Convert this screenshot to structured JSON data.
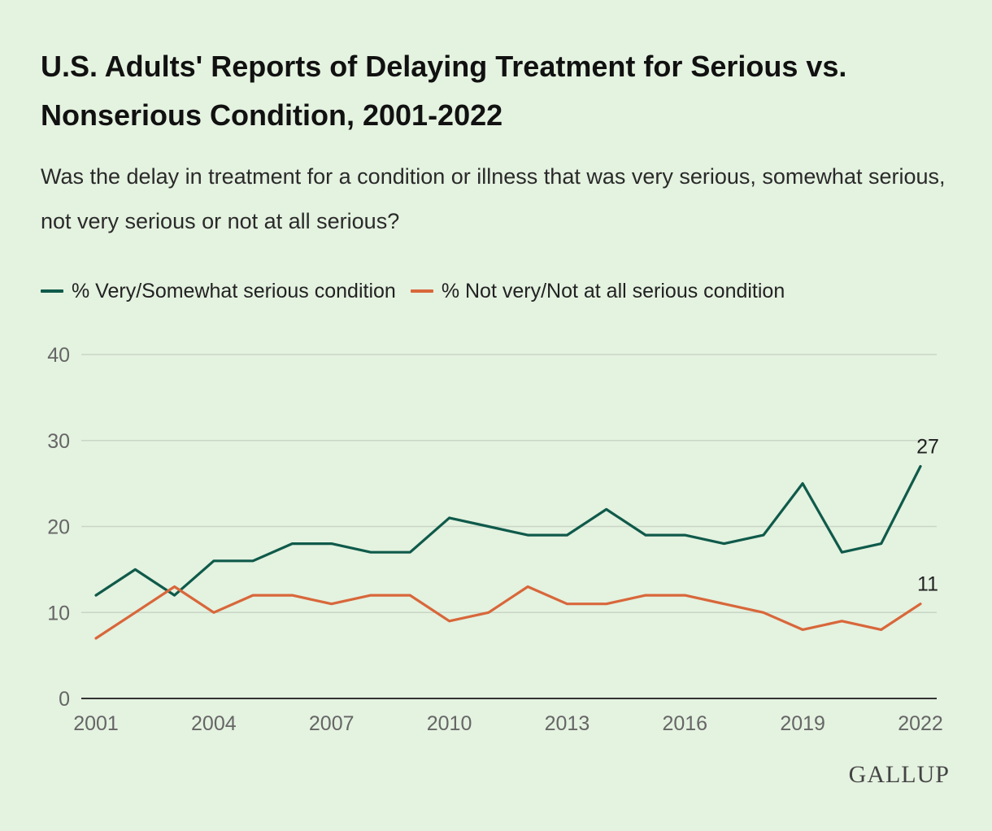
{
  "title": "U.S. Adults' Reports of Delaying Treatment for Serious vs. Nonserious Condition, 2001-2022",
  "subtitle": "Was the delay in treatment for a condition or illness that was very serious, somewhat serious, not very serious or not at all serious?",
  "logo": "GALLUP",
  "colors": {
    "background": "#e4f2e0",
    "series_serious": "#0f5a4a",
    "series_nonserious": "#d8673a",
    "grid": "#c9d6c6",
    "axis": "#333333"
  },
  "chart_data": {
    "type": "line",
    "x": [
      2001,
      2002,
      2003,
      2004,
      2005,
      2006,
      2007,
      2008,
      2009,
      2010,
      2011,
      2012,
      2013,
      2014,
      2015,
      2016,
      2017,
      2018,
      2019,
      2020,
      2021,
      2022
    ],
    "series": [
      {
        "name": "% Very/Somewhat serious condition",
        "color": "#0f5a4a",
        "values": [
          12,
          15,
          12,
          16,
          16,
          18,
          18,
          17,
          17,
          21,
          20,
          19,
          19,
          22,
          19,
          19,
          18,
          19,
          25,
          17,
          18,
          27
        ],
        "end_label": "27"
      },
      {
        "name": "% Not very/Not at all serious condition",
        "color": "#d8673a",
        "values": [
          7,
          10,
          13,
          10,
          12,
          12,
          11,
          12,
          12,
          9,
          10,
          13,
          11,
          11,
          12,
          12,
          11,
          10,
          8,
          9,
          8,
          11
        ],
        "end_label": "11"
      }
    ],
    "xticks": [
      2001,
      2004,
      2007,
      2010,
      2013,
      2016,
      2019,
      2022
    ],
    "yticks": [
      0,
      10,
      20,
      30,
      40
    ],
    "ylim": [
      0,
      40
    ],
    "xlim": [
      2001,
      2022
    ],
    "xlabel": "",
    "ylabel": "",
    "grid": true,
    "legend_position": "top-left"
  }
}
